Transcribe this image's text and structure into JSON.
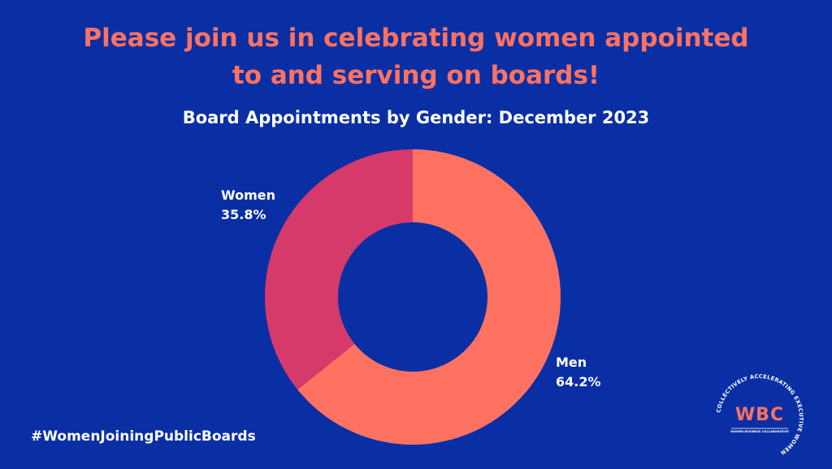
{
  "header": {
    "headline_line1": "Please join us in celebrating women appointed",
    "headline_line2": "to and serving on boards!"
  },
  "colors": {
    "background": "#0a2fa5",
    "accent": "#ff7262",
    "men_slice": "#ff7262",
    "women_slice": "#d63a6a",
    "text": "#ffffff"
  },
  "chart_data": {
    "type": "pie",
    "title": "Board Appointments by Gender: December 2023",
    "donut": true,
    "slices": [
      {
        "name": "Men",
        "value": 64.2,
        "label": "64.2%",
        "color": "#ff7262"
      },
      {
        "name": "Women",
        "value": 35.8,
        "label": "35.8%",
        "color": "#d63a6a"
      }
    ],
    "legend": "none"
  },
  "footer": {
    "hashtag": "#WomenJoiningPublicBoards"
  },
  "logo": {
    "ring_text": "COLLECTIVELY ACCELERATING EXECUTIVE WOMEN",
    "mark": "WBC",
    "subtitle": "WOMEN BUSINESS COLLABORATIVE"
  }
}
